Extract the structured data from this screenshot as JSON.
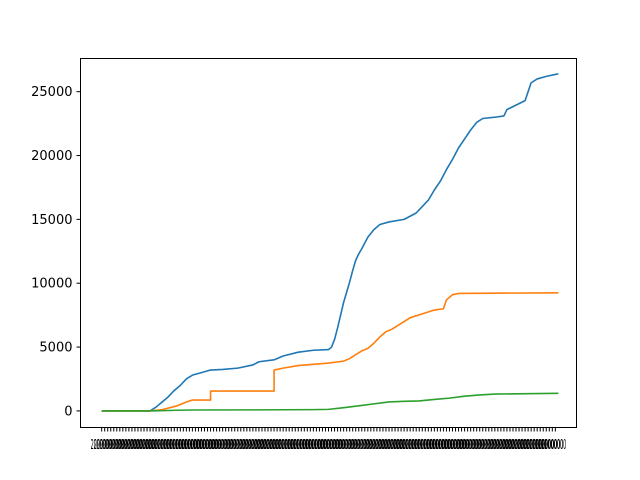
{
  "chart_data": {
    "type": "line",
    "title": "",
    "xlabel": "",
    "ylabel": "",
    "grid": false,
    "ylim": [
      -1300,
      27600
    ],
    "xlim": [
      -7,
      157
    ],
    "yticks": [
      0,
      5000,
      10000,
      15000,
      20000,
      25000
    ],
    "yticklabels": [
      "0",
      "5000",
      "10000",
      "15000",
      "20000",
      "25000"
    ],
    "x_tick_count": 151,
    "x_tick_label_sample": "2",
    "series": [
      {
        "color": "#1f77b4",
        "points": [
          [
            0,
            0
          ],
          [
            16,
            0
          ],
          [
            18,
            300
          ],
          [
            20,
            700
          ],
          [
            22,
            1100
          ],
          [
            24,
            1600
          ],
          [
            26,
            2000
          ],
          [
            28,
            2500
          ],
          [
            30,
            2800
          ],
          [
            33,
            3000
          ],
          [
            36,
            3200
          ],
          [
            40,
            3250
          ],
          [
            45,
            3350
          ],
          [
            50,
            3600
          ],
          [
            52,
            3850
          ],
          [
            57,
            4000
          ],
          [
            60,
            4300
          ],
          [
            65,
            4600
          ],
          [
            70,
            4750
          ],
          [
            75,
            4800
          ],
          [
            76,
            5000
          ],
          [
            77,
            5600
          ],
          [
            78,
            6500
          ],
          [
            79,
            7500
          ],
          [
            80,
            8500
          ],
          [
            81,
            9300
          ],
          [
            82,
            10100
          ],
          [
            83,
            11000
          ],
          [
            84,
            11800
          ],
          [
            85,
            12300
          ],
          [
            86,
            12700
          ],
          [
            88,
            13600
          ],
          [
            90,
            14200
          ],
          [
            92,
            14600
          ],
          [
            95,
            14800
          ],
          [
            100,
            15000
          ],
          [
            104,
            15500
          ],
          [
            106,
            16000
          ],
          [
            108,
            16500
          ],
          [
            110,
            17300
          ],
          [
            112,
            18000
          ],
          [
            114,
            18900
          ],
          [
            116,
            19700
          ],
          [
            118,
            20600
          ],
          [
            120,
            21300
          ],
          [
            122,
            22000
          ],
          [
            124,
            22600
          ],
          [
            126,
            22900
          ],
          [
            130,
            23000
          ],
          [
            133,
            23100
          ],
          [
            134,
            23600
          ],
          [
            140,
            24300
          ],
          [
            142,
            25700
          ],
          [
            144,
            26000
          ],
          [
            147,
            26200
          ],
          [
            151,
            26400
          ]
        ]
      },
      {
        "color": "#ff7f0e",
        "points": [
          [
            0,
            0
          ],
          [
            16,
            0
          ],
          [
            20,
            100
          ],
          [
            25,
            400
          ],
          [
            28,
            700
          ],
          [
            30,
            850
          ],
          [
            36,
            850
          ],
          [
            36,
            1550
          ],
          [
            57,
            1550
          ],
          [
            57,
            3200
          ],
          [
            60,
            3350
          ],
          [
            65,
            3550
          ],
          [
            70,
            3650
          ],
          [
            75,
            3750
          ],
          [
            80,
            3900
          ],
          [
            82,
            4100
          ],
          [
            84,
            4400
          ],
          [
            86,
            4700
          ],
          [
            88,
            4900
          ],
          [
            90,
            5300
          ],
          [
            92,
            5800
          ],
          [
            94,
            6200
          ],
          [
            96,
            6400
          ],
          [
            98,
            6700
          ],
          [
            100,
            7000
          ],
          [
            102,
            7300
          ],
          [
            106,
            7600
          ],
          [
            110,
            7900
          ],
          [
            113,
            8000
          ],
          [
            114,
            8700
          ],
          [
            116,
            9100
          ],
          [
            118,
            9200
          ],
          [
            151,
            9250
          ]
        ]
      },
      {
        "color": "#2ca02c",
        "points": [
          [
            0,
            0
          ],
          [
            16,
            0
          ],
          [
            25,
            50
          ],
          [
            30,
            70
          ],
          [
            50,
            80
          ],
          [
            60,
            90
          ],
          [
            70,
            100
          ],
          [
            75,
            120
          ],
          [
            80,
            250
          ],
          [
            85,
            400
          ],
          [
            90,
            550
          ],
          [
            95,
            700
          ],
          [
            100,
            750
          ],
          [
            105,
            780
          ],
          [
            110,
            900
          ],
          [
            115,
            1000
          ],
          [
            120,
            1150
          ],
          [
            125,
            1250
          ],
          [
            130,
            1320
          ],
          [
            151,
            1380
          ]
        ]
      }
    ]
  }
}
